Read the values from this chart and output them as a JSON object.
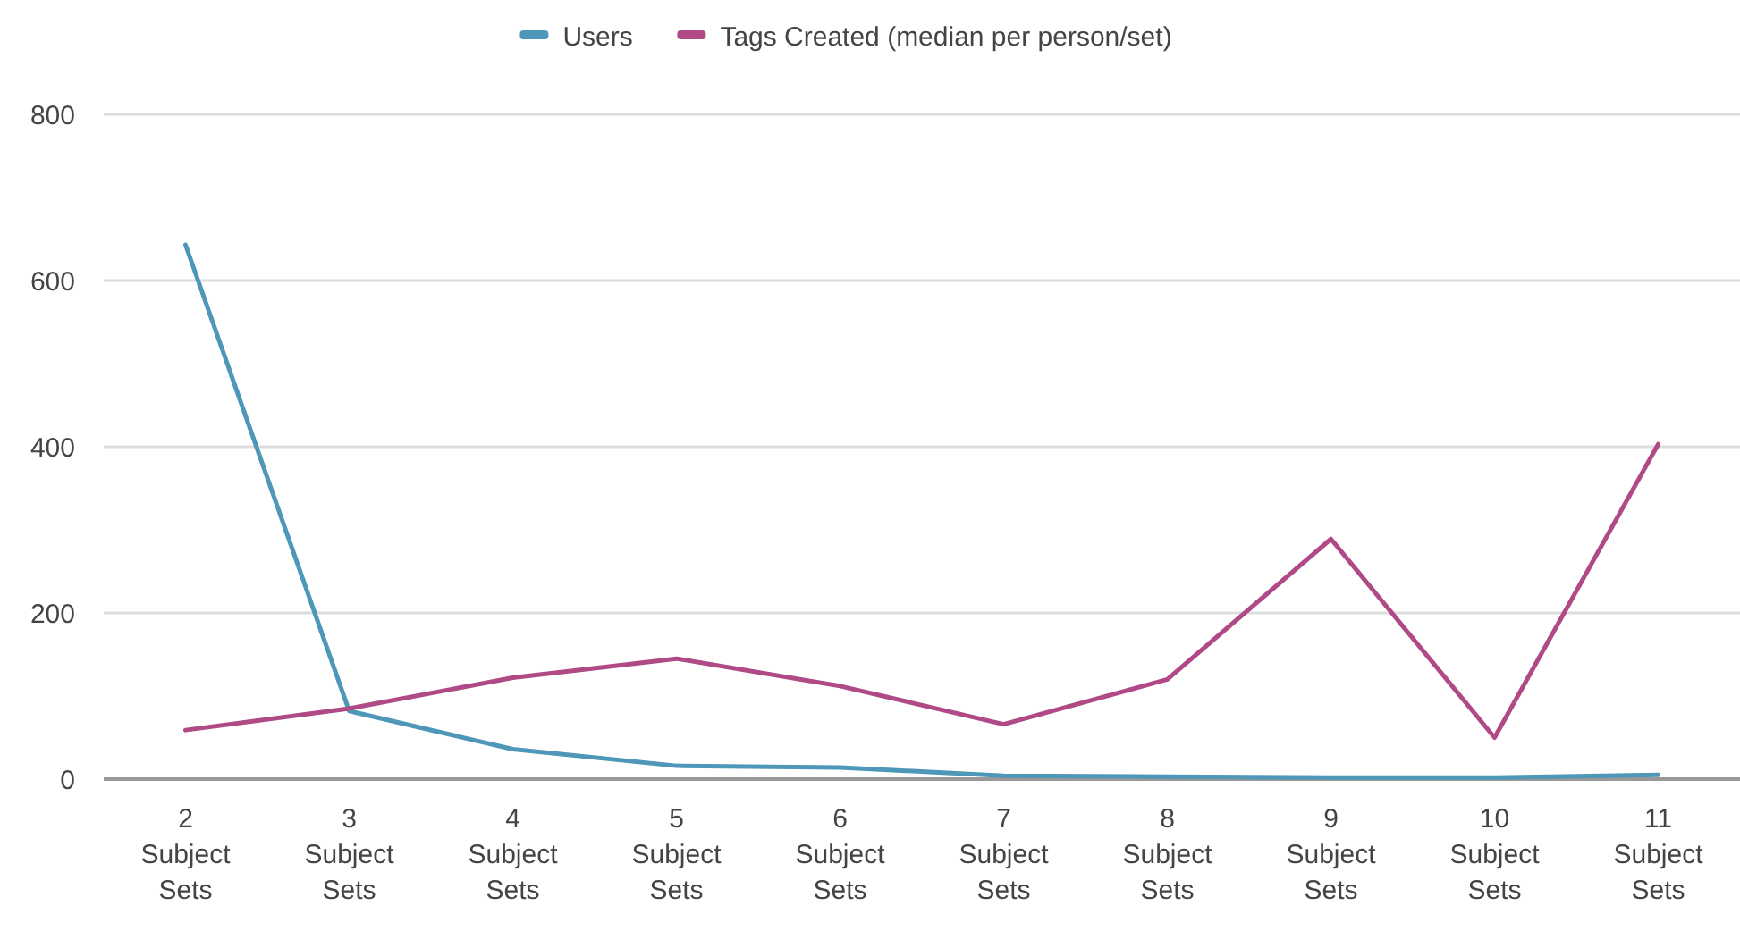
{
  "chart_data": {
    "type": "line",
    "categories": [
      "2 Subject Sets",
      "3 Subject Sets",
      "4 Subject Sets",
      "5 Subject Sets",
      "6 Subject Sets",
      "7 Subject Sets",
      "8 Subject Sets",
      "9 Subject Sets",
      "10 Subject Sets",
      "11 Subject Sets"
    ],
    "series": [
      {
        "name": "Users",
        "color": "#4e97b8",
        "values": [
          643,
          82,
          36,
          16,
          14,
          4,
          3,
          2,
          2,
          5
        ]
      },
      {
        "name": "Tags Created (median per person/set)",
        "color": "#b04a86",
        "values": [
          59,
          85,
          122,
          145,
          112,
          66,
          120,
          289,
          50,
          403
        ]
      }
    ],
    "ylim": [
      0,
      800
    ],
    "yticks": [
      0,
      200,
      400,
      600,
      800
    ],
    "grid": "y",
    "legend": "top",
    "marker": "none",
    "line_style": "solid"
  }
}
